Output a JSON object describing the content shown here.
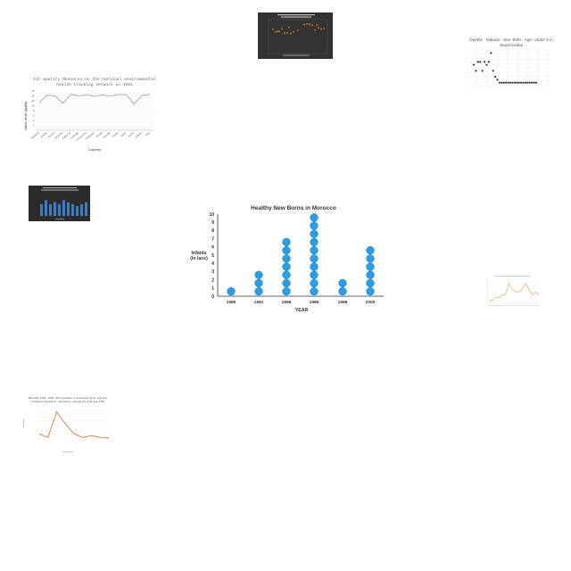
{
  "chart_data": [
    {
      "type": "scatter",
      "title": "Healthy New Borns in Morocco",
      "xlabel": "YEAR",
      "ylabel": "Infants (in lacs)",
      "ylabel_lines": [
        "Infants",
        "(in lacs)"
      ],
      "categories": [
        "1985",
        "1992",
        "1996",
        "1996",
        "1998",
        "2000"
      ],
      "values": [
        1,
        3,
        7,
        10,
        2,
        6
      ],
      "yticks": [
        "10",
        "9",
        "8",
        "7",
        "6",
        "5",
        "4",
        "3",
        "2",
        "1",
        "0"
      ],
      "ylim": [
        0,
        10
      ],
      "style": "dot-plot (stacked circles, one per unit)",
      "color": "#2a9ee0",
      "grid": false
    },
    {
      "type": "scatter",
      "title": "",
      "xlabel": "",
      "ylabel": "",
      "series": [
        {
          "values": [
            6.8,
            6.0,
            6.2,
            6.9,
            5.7,
            5.8,
            5.6,
            6.1,
            8.1,
            8.3,
            8.2,
            7.9,
            6.6,
            7.2,
            6.9
          ]
        },
        {
          "values": [
            6.2,
            7.4,
            6.5,
            8.0,
            7.0
          ]
        }
      ],
      "background": "#333333",
      "color": "#e8831e"
    },
    {
      "type": "scatter",
      "title": "Deaths - Malaria - Sex: Both - Age: Under 5 in Saudi Arabia",
      "title_lines": [
        "Deaths - Malaria - Sex: Both - Age: Under 5 in",
        "Saudi Arabia"
      ],
      "x": [
        1990,
        1991,
        1992,
        1993,
        1994,
        1995,
        1996,
        1997,
        1998,
        1999,
        2000,
        2001,
        2002,
        2003,
        2004,
        2005,
        2006,
        2007,
        2008,
        2009,
        2010,
        2011,
        2012,
        2013,
        2014,
        2015,
        2016,
        2017,
        2018,
        2019
      ],
      "y": [
        7,
        5,
        8,
        8,
        5,
        8,
        7,
        8,
        11,
        5,
        3,
        2,
        1,
        1,
        1,
        1,
        1,
        1,
        1,
        1,
        1,
        1,
        1,
        1,
        1,
        1,
        1,
        1,
        1,
        1
      ],
      "color": "#333333"
    },
    {
      "type": "line",
      "title": "Air quality Measures on the national environmental health tracking network in 1994",
      "title_lines": [
        "Air quality Measures on the national environmental",
        "health tracking network in 1994"
      ],
      "xlabel": "Country",
      "ylabel": "Value of air quality",
      "categories": [
        "Alabama",
        "Alaska",
        "Arizona",
        "Arkansas",
        "California",
        "Colorado",
        "Connecticut",
        "Delaware",
        "Florida",
        "Georgia",
        "Hawaii",
        "Idaho",
        "Illinois",
        "Indiana",
        "Iowa"
      ],
      "values": [
        11.2,
        14.3,
        13.9,
        11.0,
        14.6,
        14.0,
        14.5,
        13.8,
        14.4,
        13.9,
        14.6,
        14.5,
        10.7,
        14.2,
        14.6
      ],
      "yticks": [
        "16",
        "15",
        "14",
        "13",
        "12",
        "11",
        "10",
        "9",
        "8",
        "7",
        "6",
        "5",
        "4",
        "3",
        "2",
        "1"
      ],
      "ylim": [
        0,
        16
      ],
      "color": "#b0b0b0"
    },
    {
      "type": "bar",
      "title": "",
      "values": [
        6,
        8,
        6,
        7,
        6,
        8,
        7,
        6,
        5,
        6,
        7
      ],
      "background": "#2b2b2b",
      "color": "#3d7bc4"
    },
    {
      "type": "line",
      "title": "",
      "values": [
        1,
        1,
        2,
        2,
        3,
        3,
        7,
        5,
        4,
        4,
        5,
        7,
        5,
        3,
        4,
        3
      ],
      "color": "#f0b27a"
    },
    {
      "type": "line",
      "title": "Education 1995 - 2000: Total population to census age group, total (see Limitations Population) - Population: total age 0-5 of the year 1995",
      "title_lines": [
        "Education 1995 - 2000: Total population to census age group, total (see",
        "Limitations Population) - Population: total age 0-5 of the year 1995"
      ],
      "values": [
        2.0,
        1.0,
        8.5,
        5.0,
        2.0,
        1.0,
        1.5,
        1.0,
        0.8
      ],
      "ylim": [
        0,
        10
      ],
      "color": "#d98b4c"
    }
  ]
}
